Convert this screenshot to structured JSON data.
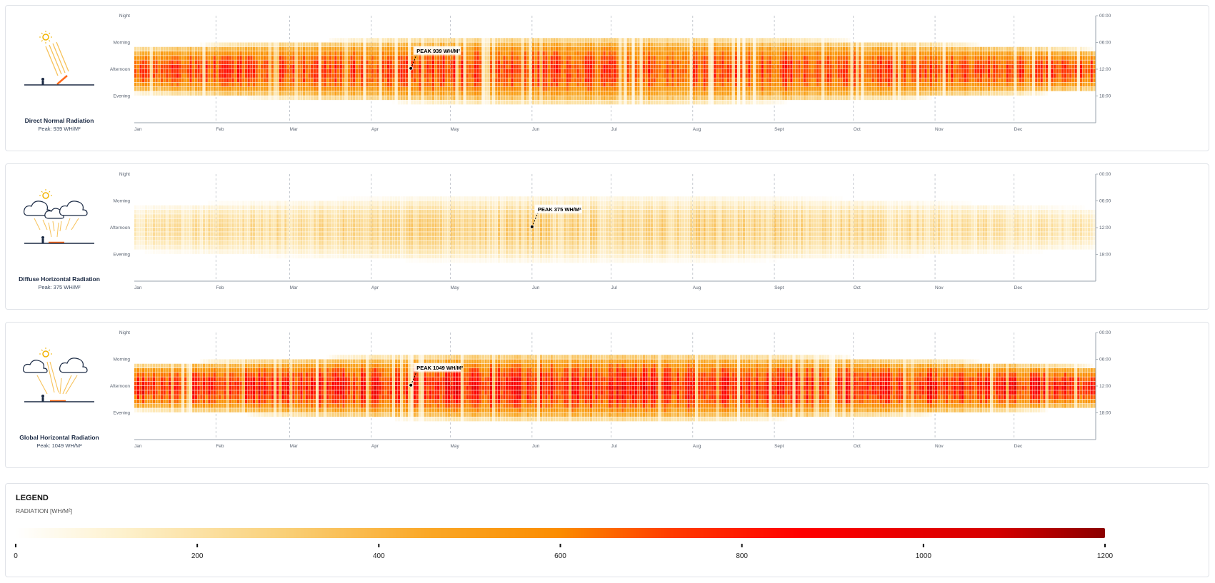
{
  "colors": {
    "scale": [
      "#ffffff",
      "#fde9b8",
      "#f9cd75",
      "#f9a825",
      "#fb8c00",
      "#ff3d00",
      "#ff0000",
      "#d50000",
      "#8b0000"
    ],
    "axis": "#9aa3ad",
    "grid": "#b7bcc4",
    "text": "#1b2a44"
  },
  "chart_data": [
    {
      "type": "heatmap",
      "title": "Direct Normal Radiation",
      "peak_label": "Peak: 939 WH/M²",
      "annotation": "PEAK 939 WH/M²",
      "annotation_month_pos": 3.5,
      "annotation_hour": 11.8,
      "peak": 939,
      "icon": "direct-normal-radiation-icon",
      "x_ticks": [
        "Jan",
        "Feb",
        "Mar",
        "Apr",
        "May",
        "Jun",
        "Jul",
        "Aug",
        "Sept",
        "Oct",
        "Nov",
        "Dec"
      ],
      "y_ticks_left": [
        "Night",
        "Morning",
        "Afternoon",
        "Evening"
      ],
      "y_ticks_right": [
        "00:00",
        "06:00",
        "12:00",
        "18:00"
      ],
      "x_range": [
        1,
        365
      ],
      "y_range": [
        0,
        24
      ],
      "value_range": [
        0,
        1200
      ]
    },
    {
      "type": "heatmap",
      "title": "Diffuse Horizontal Radiation",
      "peak_label": "Peak: 375 WH/M²",
      "annotation": "PEAK 375 WH/M²",
      "annotation_month_pos": 5.0,
      "annotation_hour": 11.8,
      "peak": 375,
      "icon": "diffuse-horizontal-radiation-icon",
      "x_ticks": [
        "Jan",
        "Feb",
        "Mar",
        "Apr",
        "May",
        "Jun",
        "Jul",
        "Aug",
        "Sept",
        "Oct",
        "Nov",
        "Dec"
      ],
      "y_ticks_left": [
        "Night",
        "Morning",
        "Afternoon",
        "Evening"
      ],
      "y_ticks_right": [
        "00:00",
        "06:00",
        "12:00",
        "18:00"
      ],
      "x_range": [
        1,
        365
      ],
      "y_range": [
        0,
        24
      ],
      "value_range": [
        0,
        1200
      ]
    },
    {
      "type": "heatmap",
      "title": "Global Horizontal Radiation",
      "peak_label": "Peak: 1049 WH/M²",
      "annotation": "PEAK 1049 WH/M²",
      "annotation_month_pos": 3.5,
      "annotation_hour": 11.8,
      "peak": 1049,
      "icon": "global-horizontal-radiation-icon",
      "x_ticks": [
        "Jan",
        "Feb",
        "Mar",
        "Apr",
        "May",
        "Jun",
        "Jul",
        "Aug",
        "Sept",
        "Oct",
        "Nov",
        "Dec"
      ],
      "y_ticks_left": [
        "Night",
        "Morning",
        "Afternoon",
        "Evening"
      ],
      "y_ticks_right": [
        "00:00",
        "06:00",
        "12:00",
        "18:00"
      ],
      "x_range": [
        1,
        365
      ],
      "y_range": [
        0,
        24
      ],
      "value_range": [
        0,
        1200
      ]
    }
  ],
  "legend": {
    "title": "LEGEND",
    "subtitle": "RADIATION [WH/M²]",
    "ticks": [
      "0",
      "200",
      "400",
      "600",
      "800",
      "1000",
      "1200"
    ],
    "range": [
      0,
      1200
    ]
  }
}
